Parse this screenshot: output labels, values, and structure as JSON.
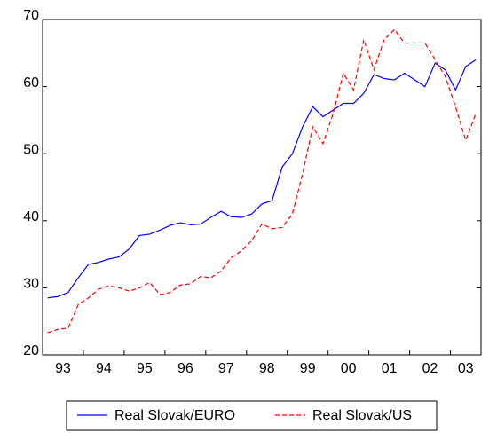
{
  "chart_data": {
    "type": "line",
    "categories": [
      "93",
      null,
      null,
      null,
      "94",
      null,
      null,
      null,
      "95",
      null,
      null,
      null,
      "96",
      null,
      null,
      null,
      "97",
      null,
      null,
      null,
      "98",
      null,
      null,
      null,
      "99",
      null,
      null,
      null,
      "00",
      null,
      null,
      null,
      "01",
      null,
      null,
      null,
      "02",
      null,
      null,
      null,
      "03",
      null,
      null
    ],
    "series": [
      {
        "name": "Real Slovak/EURO",
        "color": "#0000ff",
        "dashed": false,
        "values": [
          28.5,
          28.7,
          29.3,
          31.5,
          33.5,
          33.8,
          34.3,
          34.6,
          35.8,
          37.8,
          38.0,
          38.6,
          39.3,
          39.7,
          39.4,
          39.5,
          40.5,
          41.4,
          40.6,
          40.5,
          41.0,
          42.5,
          43.0,
          48.0,
          50.0,
          54.0,
          57.0,
          55.5,
          56.5,
          57.5,
          57.5,
          59.0,
          61.8,
          61.2,
          61.0,
          62.0,
          61.0,
          60.0,
          63.5,
          62.5,
          59.5,
          63.0,
          64.0
        ]
      },
      {
        "name": "Real Slovak/US",
        "color": "#ff0000",
        "dashed": true,
        "values": [
          23.3,
          23.8,
          24.0,
          27.5,
          28.5,
          29.8,
          30.3,
          30.0,
          29.5,
          30.0,
          30.8,
          29.0,
          29.3,
          30.4,
          30.6,
          31.7,
          31.5,
          32.5,
          34.5,
          35.5,
          37.0,
          39.5,
          38.8,
          39.0,
          41.0,
          47.0,
          54.0,
          51.5,
          56.0,
          62.0,
          59.5,
          67.0,
          62.5,
          67.0,
          68.5,
          66.5,
          66.5,
          66.5,
          64.0,
          61.5,
          57.0,
          52.0,
          56.0
        ]
      }
    ],
    "ylim": [
      20,
      70
    ],
    "yticks": [
      20,
      30,
      40,
      50,
      60,
      70
    ],
    "grid": false,
    "legend": "bottom"
  }
}
